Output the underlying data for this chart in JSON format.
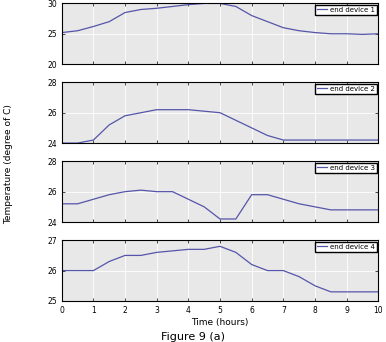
{
  "title": "Figure 9 (a)",
  "ylabel": "Temperature (degree of C)",
  "xlabel": "Time (hours)",
  "line_color": "#5555aa",
  "bg_color": "#e8e8e8",
  "subplots": [
    {
      "label": "end device 1",
      "ylim": [
        20,
        30
      ],
      "yticks": [
        20,
        25,
        30
      ],
      "x": [
        0,
        0.5,
        1,
        1.5,
        2,
        2.5,
        3,
        3.5,
        4,
        4.5,
        5,
        5.5,
        6,
        6.5,
        7,
        7.5,
        8,
        8.5,
        9,
        9.5,
        10
      ],
      "y": [
        25.2,
        25.5,
        26.2,
        27.0,
        28.5,
        29.0,
        29.2,
        29.5,
        29.8,
        30.0,
        30.0,
        29.5,
        28.0,
        27.0,
        26.0,
        25.5,
        25.2,
        25.0,
        25.0,
        24.9,
        25.0
      ]
    },
    {
      "label": "end device 2",
      "ylim": [
        24,
        28
      ],
      "yticks": [
        24,
        26,
        28
      ],
      "x": [
        0,
        0.5,
        1,
        1.5,
        2,
        2.5,
        3,
        3.5,
        4,
        4.5,
        5,
        5.5,
        6,
        6.5,
        7,
        7.5,
        8,
        8.5,
        9,
        9.5,
        10
      ],
      "y": [
        24.0,
        24.0,
        24.2,
        25.2,
        25.8,
        26.0,
        26.2,
        26.2,
        26.2,
        26.1,
        26.0,
        25.5,
        25.0,
        24.5,
        24.2,
        24.2,
        24.2,
        24.2,
        24.2,
        24.2,
        24.2
      ]
    },
    {
      "label": "end device 3",
      "ylim": [
        24,
        28
      ],
      "yticks": [
        24,
        26,
        28
      ],
      "x": [
        0,
        0.5,
        1,
        1.5,
        2,
        2.5,
        3,
        3.5,
        4,
        4.5,
        5,
        5.5,
        6,
        6.5,
        7,
        7.5,
        8,
        8.5,
        9,
        9.5,
        10
      ],
      "y": [
        25.2,
        25.2,
        25.5,
        25.8,
        26.0,
        26.1,
        26.0,
        26.0,
        25.5,
        25.0,
        24.2,
        24.2,
        25.8,
        25.8,
        25.5,
        25.2,
        25.0,
        24.8,
        24.8,
        24.8,
        24.8
      ]
    },
    {
      "label": "end device 4",
      "ylim": [
        25,
        27
      ],
      "yticks": [
        25,
        26,
        27
      ],
      "x": [
        0,
        0.5,
        1,
        1.5,
        2,
        2.5,
        3,
        3.5,
        4,
        4.5,
        5,
        5.5,
        6,
        6.5,
        7,
        7.5,
        8,
        8.5,
        9,
        9.5,
        10
      ],
      "y": [
        26.0,
        26.0,
        26.0,
        26.3,
        26.5,
        26.5,
        26.6,
        26.65,
        26.7,
        26.7,
        26.8,
        26.6,
        26.2,
        26.0,
        26.0,
        25.8,
        25.5,
        25.3,
        25.3,
        25.3,
        25.3
      ]
    }
  ]
}
